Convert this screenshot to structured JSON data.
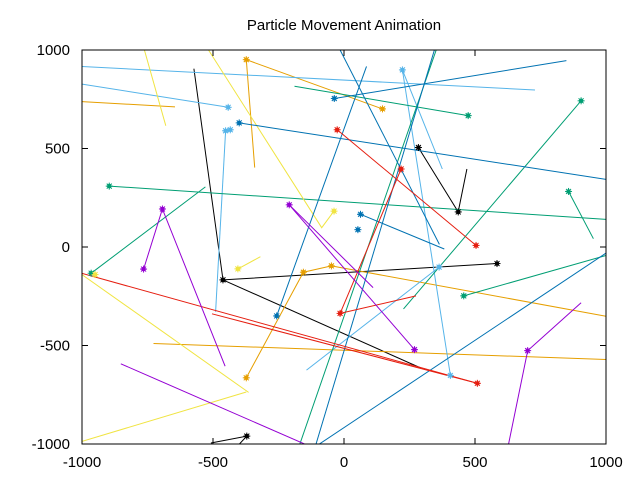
{
  "chart_data": {
    "type": "line",
    "title": "Particle Movement Animation",
    "xlabel": "",
    "ylabel": "",
    "xlim": [
      -1000,
      1000
    ],
    "ylim": [
      -1000,
      1000
    ],
    "x_ticks": [
      -1000,
      -500,
      0,
      500,
      1000
    ],
    "y_ticks": [
      -1000,
      -500,
      0,
      500,
      1000
    ],
    "x_tick_labels": [
      "-1000",
      "-500",
      "0",
      "500",
      "1000"
    ],
    "y_tick_labels": [
      "-1000",
      "-500",
      "0",
      "500",
      "1000"
    ],
    "grid": false,
    "legend": "none",
    "colors": {
      "black": "#000000",
      "orange": "#e69f00",
      "skyblue": "#56b4e9",
      "green": "#009e73",
      "yellow": "#f0e442",
      "blue": "#0072b2",
      "red": "#e51e10",
      "purple": "#9400d3"
    },
    "series": [
      {
        "color": "#000000",
        "points": [
          [
            -573,
            905
          ],
          [
            -462,
            -167
          ],
          [
            584,
            -84
          ]
        ]
      },
      {
        "color": "#000000",
        "points": [
          [
            -462,
            -167
          ],
          [
            293,
            -614
          ]
        ]
      },
      {
        "color": "#000000",
        "points": [
          [
            -508,
            -995
          ],
          [
            -371,
            -960
          ],
          [
            -409,
            -1014
          ]
        ]
      },
      {
        "color": "#000000",
        "points": [
          [
            284,
            505
          ],
          [
            436,
            178
          ],
          [
            469,
            396
          ]
        ]
      },
      {
        "color": "#e69f00",
        "points": [
          [
            -373,
            951
          ],
          [
            -341,
            403
          ]
        ]
      },
      {
        "color": "#e69f00",
        "points": [
          [
            -373,
            951
          ],
          [
            147,
            701
          ]
        ]
      },
      {
        "color": "#e69f00",
        "points": [
          [
            -373,
            -664
          ],
          [
            -155,
            -128
          ],
          [
            -48,
            -96
          ]
        ]
      },
      {
        "color": "#e69f00",
        "points": [
          [
            -48,
            -96
          ],
          [
            1000,
            -352
          ]
        ]
      },
      {
        "color": "#e69f00",
        "points": [
          [
            -1000,
            738
          ],
          [
            -645,
            711
          ]
        ]
      },
      {
        "color": "#e69f00",
        "points": [
          [
            -727,
            -490
          ],
          [
            1000,
            -571
          ]
        ]
      },
      {
        "color": "#56b4e9",
        "points": [
          [
            -1000,
            916
          ],
          [
            729,
            797
          ]
        ]
      },
      {
        "color": "#56b4e9",
        "points": [
          [
            -1000,
            827
          ],
          [
            -442,
            709
          ]
        ]
      },
      {
        "color": "#56b4e9",
        "points": [
          [
            -452,
            590
          ],
          [
            -490,
            -329
          ]
        ]
      },
      {
        "color": "#56b4e9",
        "points": [
          [
            -445,
            590
          ],
          [
            -434,
            595
          ]
        ]
      },
      {
        "color": "#56b4e9",
        "points": [
          [
            223,
            899
          ],
          [
            375,
            396
          ]
        ]
      },
      {
        "color": "#56b4e9",
        "points": [
          [
            223,
            899
          ],
          [
            406,
            -652
          ]
        ]
      },
      {
        "color": "#56b4e9",
        "points": [
          [
            -143,
            -625
          ],
          [
            363,
            -102
          ]
        ]
      },
      {
        "color": "#009e73",
        "points": [
          [
            -896,
            309
          ],
          [
            1000,
            140
          ]
        ]
      },
      {
        "color": "#009e73",
        "points": [
          [
            -965,
            -133
          ],
          [
            -529,
            305
          ]
        ]
      },
      {
        "color": "#009e73",
        "points": [
          [
            -189,
            816
          ],
          [
            474,
            667
          ]
        ]
      },
      {
        "color": "#009e73",
        "points": [
          [
            457,
            -248
          ],
          [
            1000,
            -43
          ]
        ]
      },
      {
        "color": "#009e73",
        "points": [
          [
            227,
            -314
          ],
          [
            905,
            742
          ]
        ]
      },
      {
        "color": "#009e73",
        "points": [
          [
            857,
            282
          ],
          [
            952,
            42
          ]
        ]
      },
      {
        "color": "#009e73",
        "points": [
          [
            -172,
            -1014
          ],
          [
            352,
            1000
          ]
        ]
      },
      {
        "color": "#f0e442",
        "points": [
          [
            -1000,
            -987
          ],
          [
            -373,
            -736
          ]
        ]
      },
      {
        "color": "#f0e442",
        "points": [
          [
            -1000,
            -140
          ],
          [
            -364,
            -738
          ]
        ]
      },
      {
        "color": "#f0e442",
        "points": [
          [
            -762,
            1000
          ],
          [
            -680,
            615
          ]
        ]
      },
      {
        "color": "#f0e442",
        "points": [
          [
            -517,
            1000
          ],
          [
            -85,
            98
          ],
          [
            -38,
            182
          ]
        ]
      },
      {
        "color": "#f0e442",
        "points": [
          [
            -405,
            -111
          ],
          [
            -319,
            -49
          ]
        ]
      },
      {
        "color": "#0072b2",
        "points": [
          [
            -400,
            630
          ],
          [
            1000,
            343
          ]
        ]
      },
      {
        "color": "#0072b2",
        "points": [
          [
            -37,
            754
          ],
          [
            849,
            946
          ]
        ]
      },
      {
        "color": "#0072b2",
        "points": [
          [
            -257,
            -350
          ],
          [
            86,
            917
          ]
        ]
      },
      {
        "color": "#0072b2",
        "points": [
          [
            -15,
            1000
          ],
          [
            364,
            13
          ]
        ]
      },
      {
        "color": "#0072b2",
        "points": [
          [
            63,
            166
          ],
          [
            383,
            -10
          ]
        ]
      },
      {
        "color": "#0072b2",
        "points": [
          [
            -110,
            -1014
          ],
          [
            1000,
            -31
          ]
        ]
      },
      {
        "color": "#0072b2",
        "points": [
          [
            -110,
            -1014
          ],
          [
            345,
            1000
          ]
        ]
      },
      {
        "color": "#e51e10",
        "points": [
          [
            -1000,
            -134
          ],
          [
            509,
            -692
          ]
        ]
      },
      {
        "color": "#e51e10",
        "points": [
          [
            -504,
            -339
          ],
          [
            509,
            -692
          ]
        ]
      },
      {
        "color": "#e51e10",
        "points": [
          [
            -26,
            595
          ],
          [
            504,
            8
          ]
        ]
      },
      {
        "color": "#e51e10",
        "points": [
          [
            -15,
            -337
          ],
          [
            218,
            396
          ]
        ]
      },
      {
        "color": "#e51e10",
        "points": [
          [
            -15,
            -337
          ],
          [
            275,
            -248
          ]
        ]
      },
      {
        "color": "#9400d3",
        "points": [
          [
            -765,
            -112
          ],
          [
            -693,
            193
          ],
          [
            -454,
            -605
          ]
        ]
      },
      {
        "color": "#9400d3",
        "points": [
          [
            -209,
            214
          ],
          [
            111,
            -206
          ]
        ]
      },
      {
        "color": "#9400d3",
        "points": [
          [
            -209,
            214
          ],
          [
            269,
            -521
          ]
        ]
      },
      {
        "color": "#9400d3",
        "points": [
          [
            -852,
            -593
          ],
          [
            -126,
            -1014
          ]
        ]
      },
      {
        "color": "#9400d3",
        "points": [
          [
            626,
            -1014
          ],
          [
            701,
            -526
          ],
          [
            905,
            -283
          ]
        ]
      }
    ],
    "markers": [
      {
        "color": "#000000",
        "x": -462,
        "y": -167
      },
      {
        "color": "#000000",
        "x": 584,
        "y": -84
      },
      {
        "color": "#000000",
        "x": -371,
        "y": -960
      },
      {
        "color": "#000000",
        "x": 284,
        "y": 505
      },
      {
        "color": "#000000",
        "x": 436,
        "y": 178
      },
      {
        "color": "#e69f00",
        "x": -373,
        "y": 951
      },
      {
        "color": "#e69f00",
        "x": 147,
        "y": 701
      },
      {
        "color": "#e69f00",
        "x": -373,
        "y": -664
      },
      {
        "color": "#e69f00",
        "x": -155,
        "y": -128
      },
      {
        "color": "#e69f00",
        "x": -48,
        "y": -96
      },
      {
        "color": "#56b4e9",
        "x": -442,
        "y": 709
      },
      {
        "color": "#56b4e9",
        "x": -452,
        "y": 590
      },
      {
        "color": "#56b4e9",
        "x": -434,
        "y": 595
      },
      {
        "color": "#56b4e9",
        "x": 223,
        "y": 899
      },
      {
        "color": "#56b4e9",
        "x": 406,
        "y": -652
      },
      {
        "color": "#56b4e9",
        "x": 363,
        "y": -102
      },
      {
        "color": "#009e73",
        "x": -896,
        "y": 309
      },
      {
        "color": "#009e73",
        "x": -965,
        "y": -133
      },
      {
        "color": "#009e73",
        "x": 474,
        "y": 667
      },
      {
        "color": "#009e73",
        "x": 457,
        "y": -248
      },
      {
        "color": "#009e73",
        "x": 905,
        "y": 742
      },
      {
        "color": "#009e73",
        "x": 857,
        "y": 282
      },
      {
        "color": "#f0e442",
        "x": -950,
        "y": -140
      },
      {
        "color": "#f0e442",
        "x": -38,
        "y": 182
      },
      {
        "color": "#f0e442",
        "x": -405,
        "y": -111
      },
      {
        "color": "#0072b2",
        "x": -400,
        "y": 630
      },
      {
        "color": "#0072b2",
        "x": -37,
        "y": 754
      },
      {
        "color": "#0072b2",
        "x": -257,
        "y": -350
      },
      {
        "color": "#0072b2",
        "x": 63,
        "y": 166
      },
      {
        "color": "#0072b2",
        "x": 53,
        "y": 88
      },
      {
        "color": "#e51e10",
        "x": -26,
        "y": 595
      },
      {
        "color": "#e51e10",
        "x": 504,
        "y": 8
      },
      {
        "color": "#e51e10",
        "x": 218,
        "y": 396
      },
      {
        "color": "#e51e10",
        "x": -15,
        "y": -337
      },
      {
        "color": "#e51e10",
        "x": 509,
        "y": -692
      },
      {
        "color": "#9400d3",
        "x": -765,
        "y": -112
      },
      {
        "color": "#9400d3",
        "x": -693,
        "y": 193
      },
      {
        "color": "#9400d3",
        "x": -209,
        "y": 214
      },
      {
        "color": "#9400d3",
        "x": 269,
        "y": -521
      },
      {
        "color": "#9400d3",
        "x": 701,
        "y": -526
      }
    ]
  }
}
